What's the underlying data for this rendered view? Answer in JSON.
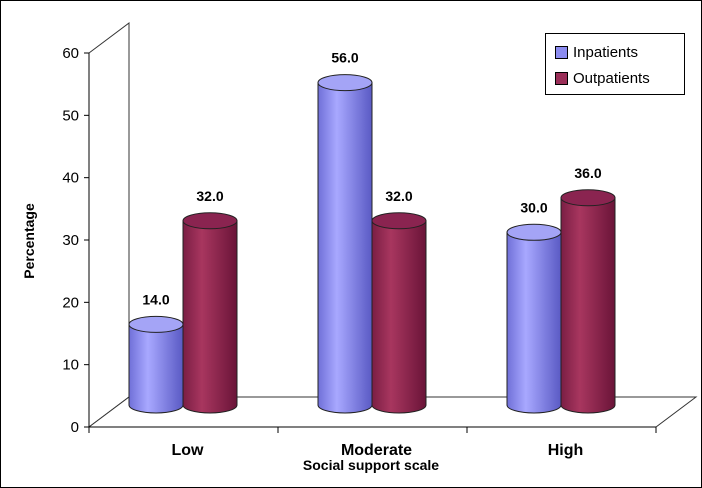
{
  "chart_data": {
    "type": "bar",
    "style": "3d-cylinder",
    "categories": [
      "Low",
      "Moderate",
      "High"
    ],
    "series": [
      {
        "name": "Inpatients",
        "values": [
          14.0,
          56.0,
          30.0
        ],
        "color": "#8C8CF0"
      },
      {
        "name": "Outpatients",
        "values": [
          32.0,
          32.0,
          36.0
        ],
        "color": "#9A2E58"
      }
    ],
    "data_labels": {
      "Inpatients": [
        "14.0",
        "56.0",
        "30.0"
      ],
      "Outpatients": [
        "32.0",
        "32.0",
        "36.0"
      ]
    },
    "xlabel": "Social support scale",
    "ylabel": "Percentage",
    "ylim": [
      0,
      60
    ],
    "yticks": [
      0,
      10,
      20,
      30,
      40,
      50,
      60
    ],
    "grid": false,
    "legend_position": "top-right"
  }
}
